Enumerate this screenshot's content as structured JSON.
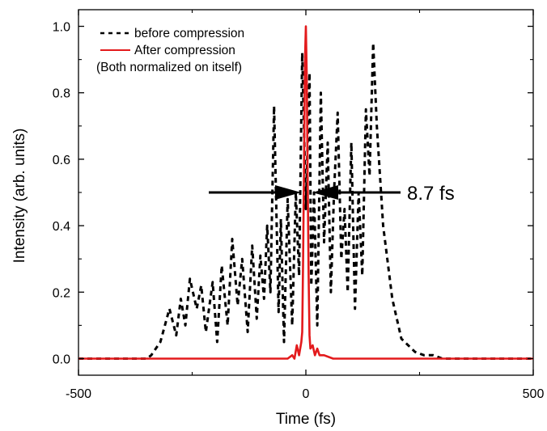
{
  "chart_data": {
    "type": "line",
    "xlabel": "Time (fs)",
    "ylabel": "Intensity (arb. units)",
    "xlim": [
      -500,
      500
    ],
    "ylim": [
      -0.05,
      1.05
    ],
    "x_ticks": [
      -500,
      0,
      500
    ],
    "x_tick_labels": [
      "-500",
      "0",
      "500"
    ],
    "y_ticks": [
      0.0,
      0.2,
      0.4,
      0.6,
      0.8,
      1.0
    ],
    "y_tick_labels": [
      "0.0",
      "0.2",
      "0.4",
      "0.6",
      "0.8",
      "1.0"
    ],
    "grid": false,
    "legend_position": "top-left",
    "legend_note": "(Both normalized on itself)",
    "annotation": {
      "text": "8.7 fs",
      "arrow_y": 0.5
    },
    "series": [
      {
        "name": "before compression",
        "color": "#000000",
        "style": "dashed",
        "x": [
          -500,
          -350,
          -340,
          -320,
          -300,
          -285,
          -275,
          -265,
          -255,
          -240,
          -230,
          -220,
          -205,
          -195,
          -185,
          -172,
          -162,
          -150,
          -140,
          -128,
          -118,
          -108,
          -100,
          -92,
          -85,
          -78,
          -70,
          -60,
          -55,
          -48,
          -40,
          -30,
          -22,
          -15,
          -8,
          0,
          8,
          12,
          18,
          25,
          33,
          40,
          48,
          55,
          62,
          70,
          78,
          85,
          92,
          100,
          108,
          116,
          124,
          132,
          140,
          148,
          156,
          170,
          190,
          210,
          240,
          260,
          280,
          300,
          500
        ],
        "y": [
          0.0,
          0.0,
          0.01,
          0.05,
          0.15,
          0.07,
          0.18,
          0.1,
          0.24,
          0.15,
          0.22,
          0.08,
          0.23,
          0.05,
          0.28,
          0.1,
          0.36,
          0.16,
          0.3,
          0.08,
          0.34,
          0.12,
          0.31,
          0.18,
          0.4,
          0.2,
          0.76,
          0.14,
          0.42,
          0.05,
          0.48,
          0.1,
          0.5,
          0.25,
          0.92,
          0.45,
          0.86,
          0.22,
          0.5,
          0.1,
          0.8,
          0.35,
          0.65,
          0.2,
          0.5,
          0.74,
          0.3,
          0.45,
          0.2,
          0.65,
          0.15,
          0.5,
          0.25,
          0.75,
          0.55,
          0.95,
          0.7,
          0.4,
          0.18,
          0.06,
          0.02,
          0.01,
          0.01,
          0.0,
          0.0
        ]
      },
      {
        "name": "After compression",
        "color": "#e31a1c",
        "style": "solid",
        "x": [
          -500,
          -40,
          -30,
          -25,
          -20,
          -15,
          -10,
          -8,
          -6,
          -4,
          -2,
          0,
          2,
          4,
          6,
          8,
          10,
          15,
          20,
          25,
          30,
          40,
          60,
          80,
          500
        ],
        "y": [
          0.0,
          0.0,
          0.01,
          0.0,
          0.04,
          0.01,
          0.05,
          0.08,
          0.3,
          0.6,
          0.9,
          1.0,
          0.85,
          0.55,
          0.25,
          0.07,
          0.03,
          0.04,
          0.01,
          0.03,
          0.01,
          0.01,
          0.0,
          0.0,
          0.0
        ]
      }
    ]
  }
}
